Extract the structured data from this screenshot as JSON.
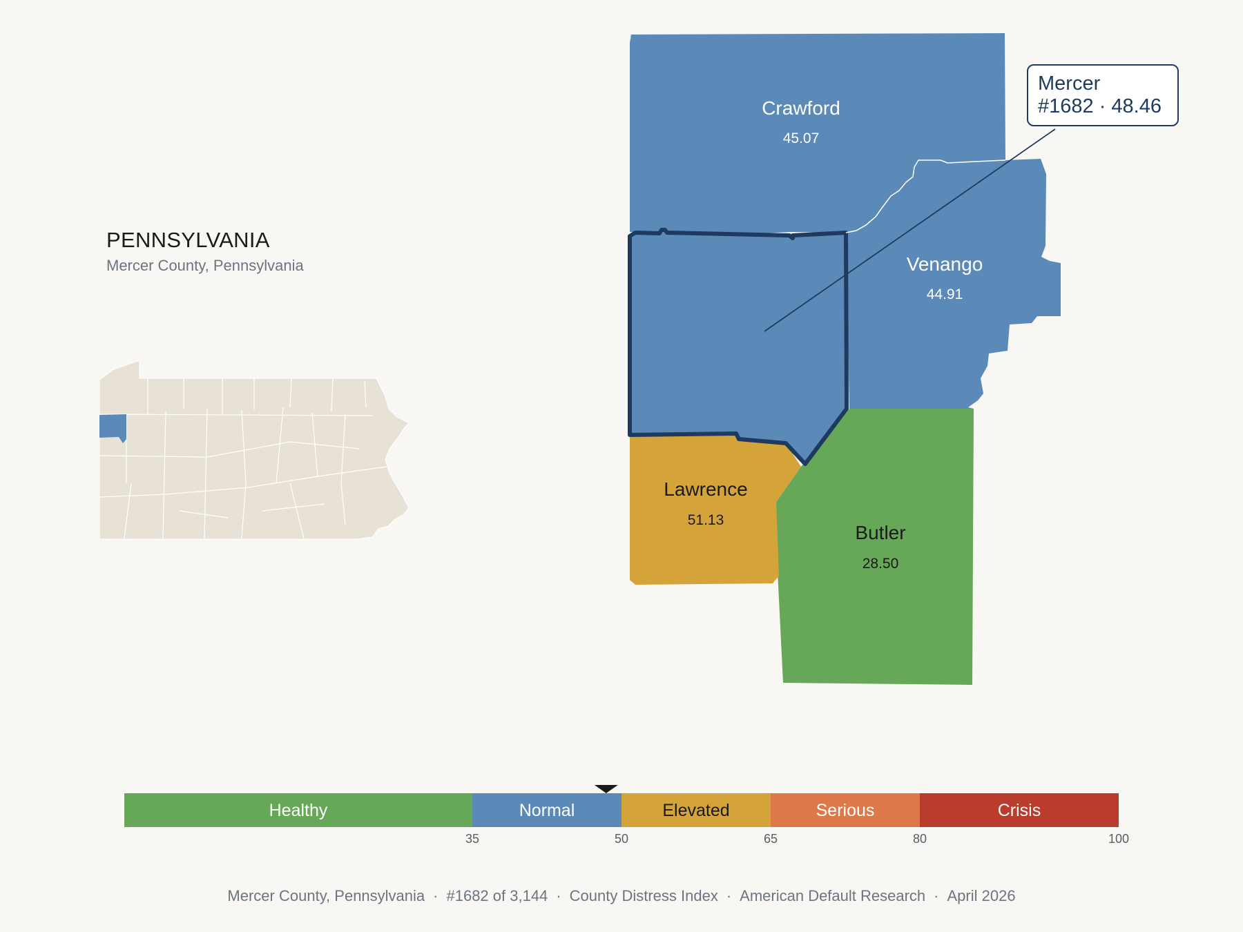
{
  "header": {
    "state_title": "PENNSYLVANIA",
    "subtitle": "Mercer County, Pennsylvania"
  },
  "counties": {
    "crawford": {
      "name": "Crawford",
      "score": "45.07",
      "color": "#5b8ab9"
    },
    "venango": {
      "name": "Venango",
      "score": "44.91",
      "color": "#5b8ab9"
    },
    "mercer": {
      "name": "Mercer",
      "score": "48.46",
      "color": "#5b8ab9",
      "outline": "#1e3a5f"
    },
    "lawrence": {
      "name": "Lawrence",
      "score": "51.13",
      "color": "#d4a33a"
    },
    "butler": {
      "name": "Butler",
      "score": "28.50",
      "color": "#67a758"
    }
  },
  "callout": {
    "line1": "Mercer",
    "line2": "#1682 · 48.46"
  },
  "locator": {
    "state_fill": "#e8e2d6",
    "highlight": "#5b8ab9",
    "county_count": 67
  },
  "legend": {
    "marker_value": 48.46,
    "bands": [
      {
        "label": "Healthy",
        "from": 0,
        "to": 35,
        "color": "#67a758",
        "text": "#ffffff"
      },
      {
        "label": "Normal",
        "from": 35,
        "to": 50,
        "color": "#5b8ab9",
        "text": "#ffffff"
      },
      {
        "label": "Elevated",
        "from": 50,
        "to": 65,
        "color": "#d4a33a",
        "text": "#1a1a1a"
      },
      {
        "label": "Serious",
        "from": 65,
        "to": 80,
        "color": "#df7848",
        "text": "#ffffff"
      },
      {
        "label": "Crisis",
        "from": 80,
        "to": 100,
        "color": "#b93c2c",
        "text": "#ffffff"
      }
    ],
    "ticks": [
      "35",
      "50",
      "65",
      "80",
      "100"
    ]
  },
  "footer": {
    "county": "Mercer County, Pennsylvania",
    "rank": "#1682 of 3,144",
    "index": "County Distress Index",
    "source": "American Default Research",
    "date": "April 2026",
    "separator": "·"
  }
}
